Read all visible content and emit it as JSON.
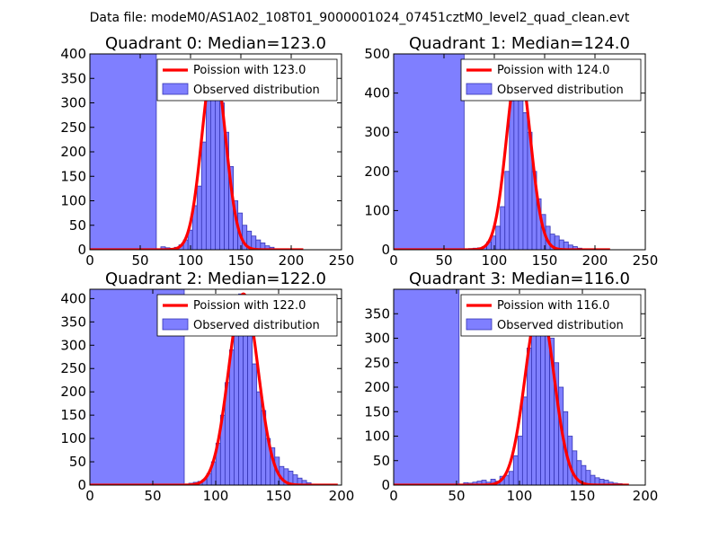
{
  "suptitle": "Data file: modeM0/AS1A02_108T01_9000001024_07451cztM0_level2_quad_clean.evt",
  "colors": {
    "poisson": "#ff0000",
    "hist_fill": "#7f7fff",
    "hist_edge": "#3535b5",
    "axes": "#000000",
    "background": "#ffffff"
  },
  "chart_data": [
    {
      "type": "bar",
      "title": "Quadrant 0: Median=123.0",
      "median": 123.0,
      "xlim": [
        0,
        250
      ],
      "ylim": [
        0,
        400
      ],
      "xticks": [
        "0",
        "50",
        "100",
        "150",
        "200",
        "250"
      ],
      "yticks": [
        "0",
        "50",
        "100",
        "150",
        "200",
        "250",
        "300",
        "350",
        "400"
      ],
      "legend": [
        "Poission with 123.0",
        "Observed distribution"
      ],
      "legend_position": "top-right",
      "poisson_peak": 382,
      "poisson_xmax": 212,
      "hist": {
        "bin_width": 4.5,
        "edges": [
          0,
          66,
          70.5,
          75,
          79.5,
          84,
          88.5,
          93,
          97.5,
          102,
          106.5,
          111,
          115.5,
          120,
          124.5,
          129,
          133.5,
          138,
          142.5,
          147,
          151.5,
          156,
          160.5,
          165,
          169.5,
          174,
          178.5,
          183,
          187.5
        ],
        "counts": [
          400,
          0,
          6,
          4,
          3,
          5,
          10,
          20,
          40,
          90,
          130,
          220,
          330,
          380,
          350,
          300,
          240,
          170,
          100,
          75,
          50,
          38,
          28,
          20,
          14,
          8,
          5,
          2
        ]
      }
    },
    {
      "type": "bar",
      "title": "Quadrant 1: Median=124.0",
      "median": 124.0,
      "xlim": [
        0,
        250
      ],
      "ylim": [
        0,
        500
      ],
      "xticks": [
        "0",
        "50",
        "100",
        "150",
        "200",
        "250"
      ],
      "yticks": [
        "0",
        "100",
        "200",
        "300",
        "400",
        "500"
      ],
      "legend": [
        "Poission with 124.0",
        "Observed distribution"
      ],
      "legend_position": "top-right",
      "poisson_peak": 475,
      "poisson_xmax": 215,
      "hist": {
        "bin_width": 4.5,
        "edges": [
          0,
          70,
          74.5,
          79,
          83.5,
          88,
          92.5,
          97,
          101.5,
          106,
          110.5,
          115,
          119.5,
          124,
          128.5,
          133,
          137.5,
          142,
          146.5,
          151,
          155.5,
          160,
          164.5,
          169,
          173.5,
          178,
          182.5,
          187
        ],
        "counts": [
          500,
          0,
          3,
          4,
          5,
          8,
          20,
          35,
          60,
          110,
          200,
          380,
          470,
          430,
          350,
          300,
          200,
          130,
          90,
          60,
          40,
          35,
          25,
          20,
          12,
          8,
          4
        ]
      }
    },
    {
      "type": "bar",
      "title": "Quadrant 2: Median=122.0",
      "median": 122.0,
      "xlim": [
        0,
        200
      ],
      "ylim": [
        0,
        420
      ],
      "xticks": [
        "0",
        "50",
        "100",
        "150",
        "200"
      ],
      "yticks": [
        "0",
        "50",
        "100",
        "150",
        "200",
        "250",
        "300",
        "350",
        "400"
      ],
      "legend": [
        "Poission with 122.0",
        "Observed distribution"
      ],
      "legend_position": "top-right",
      "poisson_peak": 410,
      "poisson_xmax": 197,
      "hist": {
        "bin_width": 3.6,
        "edges": [
          0,
          75,
          78.6,
          82.2,
          85.8,
          89.4,
          93,
          96.6,
          100.2,
          103.8,
          107.4,
          111,
          114.6,
          118.2,
          121.8,
          125.4,
          129,
          132.6,
          136.2,
          139.8,
          143.4,
          147,
          150.6,
          154.2,
          157.8,
          161.4,
          165,
          168.6,
          172.2,
          175.8
        ],
        "counts": [
          420,
          0,
          4,
          6,
          8,
          12,
          25,
          50,
          90,
          150,
          220,
          290,
          350,
          410,
          380,
          320,
          260,
          200,
          160,
          100,
          80,
          60,
          40,
          35,
          30,
          22,
          15,
          10,
          5
        ]
      }
    },
    {
      "type": "bar",
      "title": "Quadrant 3: Median=116.0",
      "median": 116.0,
      "xlim": [
        0,
        200
      ],
      "ylim": [
        0,
        400
      ],
      "xticks": [
        "0",
        "50",
        "100",
        "150",
        "200"
      ],
      "yticks": [
        "0",
        "50",
        "100",
        "150",
        "200",
        "250",
        "300",
        "350"
      ],
      "legend": [
        "Poission with 116.0",
        "Observed distribution"
      ],
      "legend_position": "top-right",
      "poisson_peak": 370,
      "poisson_xmax": 187,
      "hist": {
        "bin_width": 3.6,
        "edges": [
          0,
          52,
          55.6,
          59.2,
          62.8,
          66.4,
          70,
          73.6,
          77.2,
          80.8,
          84.4,
          88,
          91.6,
          95.2,
          98.8,
          102.4,
          106,
          109.6,
          113.2,
          116.8,
          120.4,
          124,
          127.6,
          131.2,
          134.8,
          138.4,
          142,
          145.6,
          149.2,
          152.8,
          156.4,
          160,
          163.6,
          167.2,
          170.8,
          174.4,
          178,
          181.6,
          185.2
        ],
        "counts": [
          400,
          0,
          5,
          4,
          6,
          8,
          10,
          6,
          12,
          8,
          18,
          20,
          28,
          60,
          100,
          180,
          280,
          330,
          370,
          350,
          330,
          300,
          250,
          200,
          150,
          100,
          70,
          50,
          40,
          30,
          20,
          15,
          12,
          10,
          6,
          4,
          3,
          2
        ]
      }
    }
  ]
}
